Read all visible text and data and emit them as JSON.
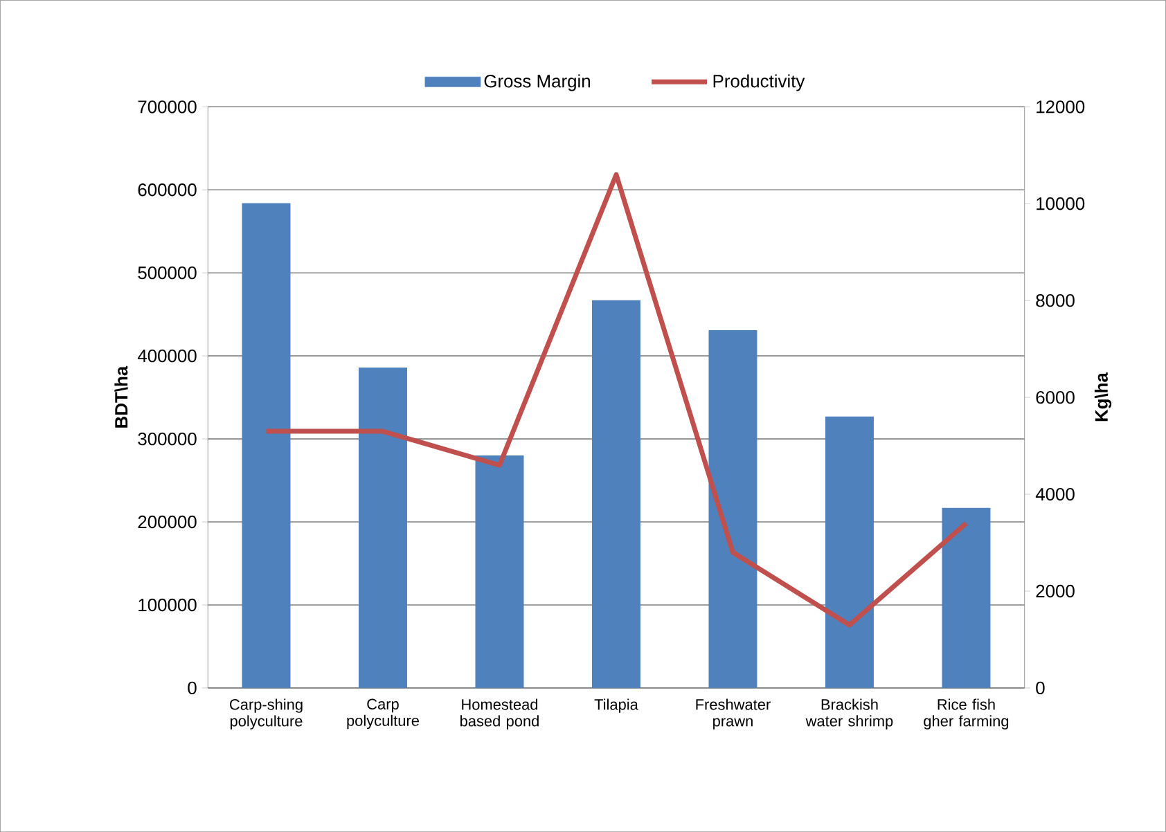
{
  "chart_data": {
    "type": "bar",
    "categories": [
      "Carp-shing polyculture",
      "Carp polyculture",
      "Homestead based pond",
      "Tilapia",
      "Freshwater prawn",
      "Brackish water shrimp",
      "Rice fish gher farming"
    ],
    "series": [
      {
        "name": "Gross Margin",
        "color": "#4f81bd",
        "values": [
          584000,
          386000,
          280000,
          467000,
          431000,
          327000,
          217000
        ]
      },
      {
        "name": "Productivity",
        "type": "line",
        "axis": "y2",
        "color": "#c0504d",
        "values": [
          5300,
          5300,
          4600,
          10600,
          2800,
          1300,
          3400
        ]
      }
    ],
    "ylabel": "BDT\\ha",
    "y2label": "Kg\\ha",
    "ylim": [
      0,
      700000
    ],
    "yticks": [
      0,
      100000,
      200000,
      300000,
      400000,
      500000,
      600000,
      700000
    ],
    "y2lim": [
      0,
      12000
    ],
    "y2ticks": [
      0,
      2000,
      4000,
      6000,
      8000,
      10000,
      12000
    ],
    "grid": "y",
    "legend": "top",
    "marker": "none"
  }
}
